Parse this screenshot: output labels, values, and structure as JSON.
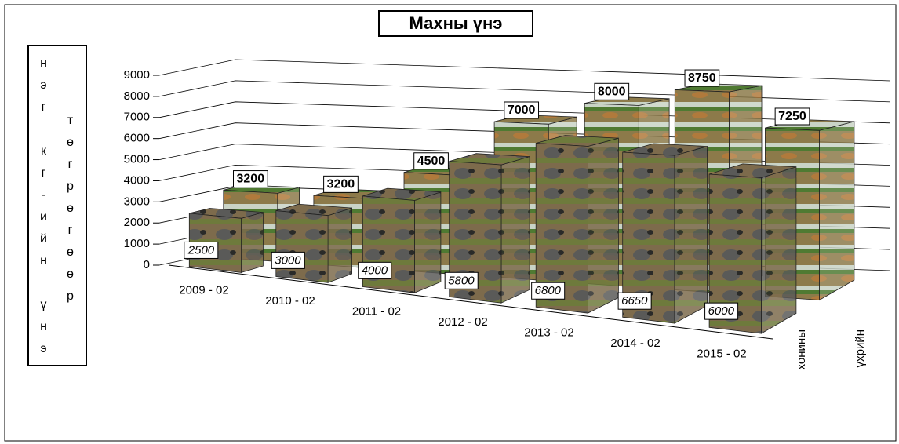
{
  "chart_data": {
    "type": "bar3d",
    "title": "Махны үнэ",
    "ylabel": [
      "нэг кг-ийн үнэ",
      "төгрөгөөр"
    ],
    "categories": [
      "2009 - 02",
      "2010 - 02",
      "2011 - 02",
      "2012 - 02",
      "2013 - 02",
      "2014 - 02",
      "2015 - 02"
    ],
    "series": [
      {
        "name": "хонины",
        "color": "#7d6b4c",
        "values": [
          2500,
          3000,
          4000,
          5800,
          6800,
          6650,
          6000
        ]
      },
      {
        "name": "үхрийн",
        "color": "#8c7a4a",
        "values": [
          3200,
          3200,
          4500,
          7000,
          8000,
          8750,
          7250
        ]
      }
    ],
    "ylim": [
      0,
      9000
    ],
    "yticks": [
      0,
      1000,
      2000,
      3000,
      4000,
      5000,
      6000,
      7000,
      8000,
      9000
    ],
    "grid": true
  }
}
